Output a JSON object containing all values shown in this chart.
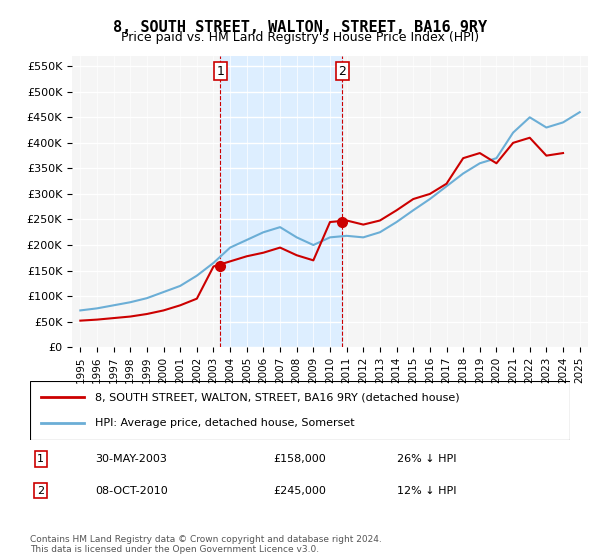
{
  "title": "8, SOUTH STREET, WALTON, STREET, BA16 9RY",
  "subtitle": "Price paid vs. HM Land Registry's House Price Index (HPI)",
  "legend_line1": "8, SOUTH STREET, WALTON, STREET, BA16 9RY (detached house)",
  "legend_line2": "HPI: Average price, detached house, Somerset",
  "transaction1_label": "1",
  "transaction1_date": "30-MAY-2003",
  "transaction1_price": "£158,000",
  "transaction1_hpi": "26% ↓ HPI",
  "transaction2_label": "2",
  "transaction2_date": "08-OCT-2010",
  "transaction2_price": "£245,000",
  "transaction2_hpi": "12% ↓ HPI",
  "footer": "Contains HM Land Registry data © Crown copyright and database right 2024.\nThis data is licensed under the Open Government Licence v3.0.",
  "hpi_color": "#6baed6",
  "price_color": "#cc0000",
  "marker_color": "#cc0000",
  "background_color": "#ffffff",
  "plot_bg_color": "#f5f5f5",
  "shaded_region_color": "#ddeeff",
  "ylim": [
    0,
    570000
  ],
  "yticks": [
    0,
    50000,
    100000,
    150000,
    200000,
    250000,
    300000,
    350000,
    400000,
    450000,
    500000,
    550000
  ],
  "hpi_years": [
    1995,
    1996,
    1997,
    1998,
    1999,
    2000,
    2001,
    2002,
    2003,
    2004,
    2005,
    2006,
    2007,
    2008,
    2009,
    2010,
    2011,
    2012,
    2013,
    2014,
    2015,
    2016,
    2017,
    2018,
    2019,
    2020,
    2021,
    2022,
    2023,
    2024,
    2025
  ],
  "hpi_values": [
    72000,
    76000,
    82000,
    88000,
    96000,
    108000,
    120000,
    140000,
    165000,
    195000,
    210000,
    225000,
    235000,
    215000,
    200000,
    215000,
    218000,
    215000,
    225000,
    245000,
    268000,
    290000,
    315000,
    340000,
    360000,
    370000,
    420000,
    450000,
    430000,
    440000,
    460000
  ],
  "price_years": [
    1995,
    1996,
    1997,
    1998,
    1999,
    2000,
    2001,
    2002,
    2003,
    2004,
    2005,
    2006,
    2007,
    2008,
    2009,
    2010,
    2011,
    2012,
    2013,
    2014,
    2015,
    2016,
    2017,
    2018,
    2019,
    2020,
    2021,
    2022,
    2023,
    2024
  ],
  "price_values": [
    52000,
    54000,
    57000,
    60000,
    65000,
    72000,
    82000,
    95000,
    158000,
    168000,
    178000,
    185000,
    195000,
    180000,
    170000,
    245000,
    248000,
    240000,
    248000,
    268000,
    290000,
    300000,
    320000,
    370000,
    380000,
    360000,
    400000,
    410000,
    375000,
    380000
  ],
  "transaction1_x": 2003.4,
  "transaction1_y": 158000,
  "transaction2_x": 2010.75,
  "transaction2_y": 245000,
  "vline1_x": 2003.4,
  "vline2_x": 2010.75,
  "xtick_years": [
    1995,
    1996,
    1997,
    1998,
    1999,
    2000,
    2001,
    2002,
    2003,
    2004,
    2005,
    2006,
    2007,
    2008,
    2009,
    2010,
    2011,
    2012,
    2013,
    2014,
    2015,
    2016,
    2017,
    2018,
    2019,
    2020,
    2021,
    2022,
    2023,
    2024,
    2025
  ]
}
